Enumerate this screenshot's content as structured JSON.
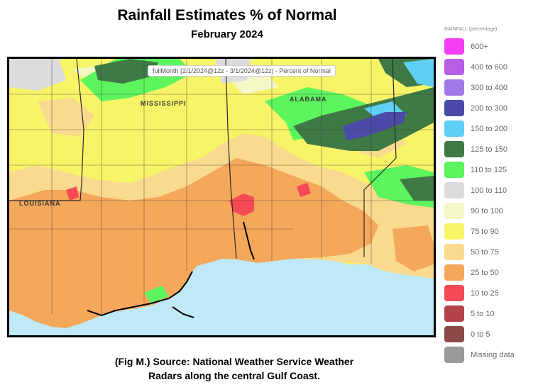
{
  "header": {
    "title": "Rainfall Estimates % of Normal",
    "subtitle": "February 2024"
  },
  "map": {
    "tooltip": "fullMonth (2/1/2024@12z - 3/1/2024@12z) - Percent of Normal",
    "state_labels": [
      "MISSISSIPPI",
      "ALABAMA",
      "LOUISIANA"
    ],
    "colors": {
      "gulf": "#bfe9f7",
      "base": "#f7f063",
      "borders": "#3b3b3b",
      "coastline": "#000000"
    }
  },
  "legend": {
    "title": "RAINFALL (percentage)",
    "items": [
      {
        "label": "600+",
        "color": "#f53ef2"
      },
      {
        "label": "400 to 600",
        "color": "#b65ee6"
      },
      {
        "label": "300 to 400",
        "color": "#9f7ae6"
      },
      {
        "label": "200 to 300",
        "color": "#4a4ba8"
      },
      {
        "label": "150 to 200",
        "color": "#5fd0f5"
      },
      {
        "label": "125 to 150",
        "color": "#3f7a46"
      },
      {
        "label": "110 to 125",
        "color": "#5df55d"
      },
      {
        "label": "100 to 110",
        "color": "#dcdcdc"
      },
      {
        "label": "90 to 100",
        "color": "#f4f8c8"
      },
      {
        "label": "75 to 90",
        "color": "#f8f468"
      },
      {
        "label": "50 to 75",
        "color": "#f9da8e"
      },
      {
        "label": "25 to 50",
        "color": "#f5a75a"
      },
      {
        "label": "10 to 25",
        "color": "#f54a55"
      },
      {
        "label": "5 to 10",
        "color": "#b4434e"
      },
      {
        "label": "0 to 5",
        "color": "#8a4b48"
      },
      {
        "label": "Missing data",
        "color": "#999999"
      }
    ]
  },
  "caption": {
    "line1": "(Fig M.) Source: National Weather Service Weather",
    "line2": "Radars along the central Gulf Coast."
  }
}
